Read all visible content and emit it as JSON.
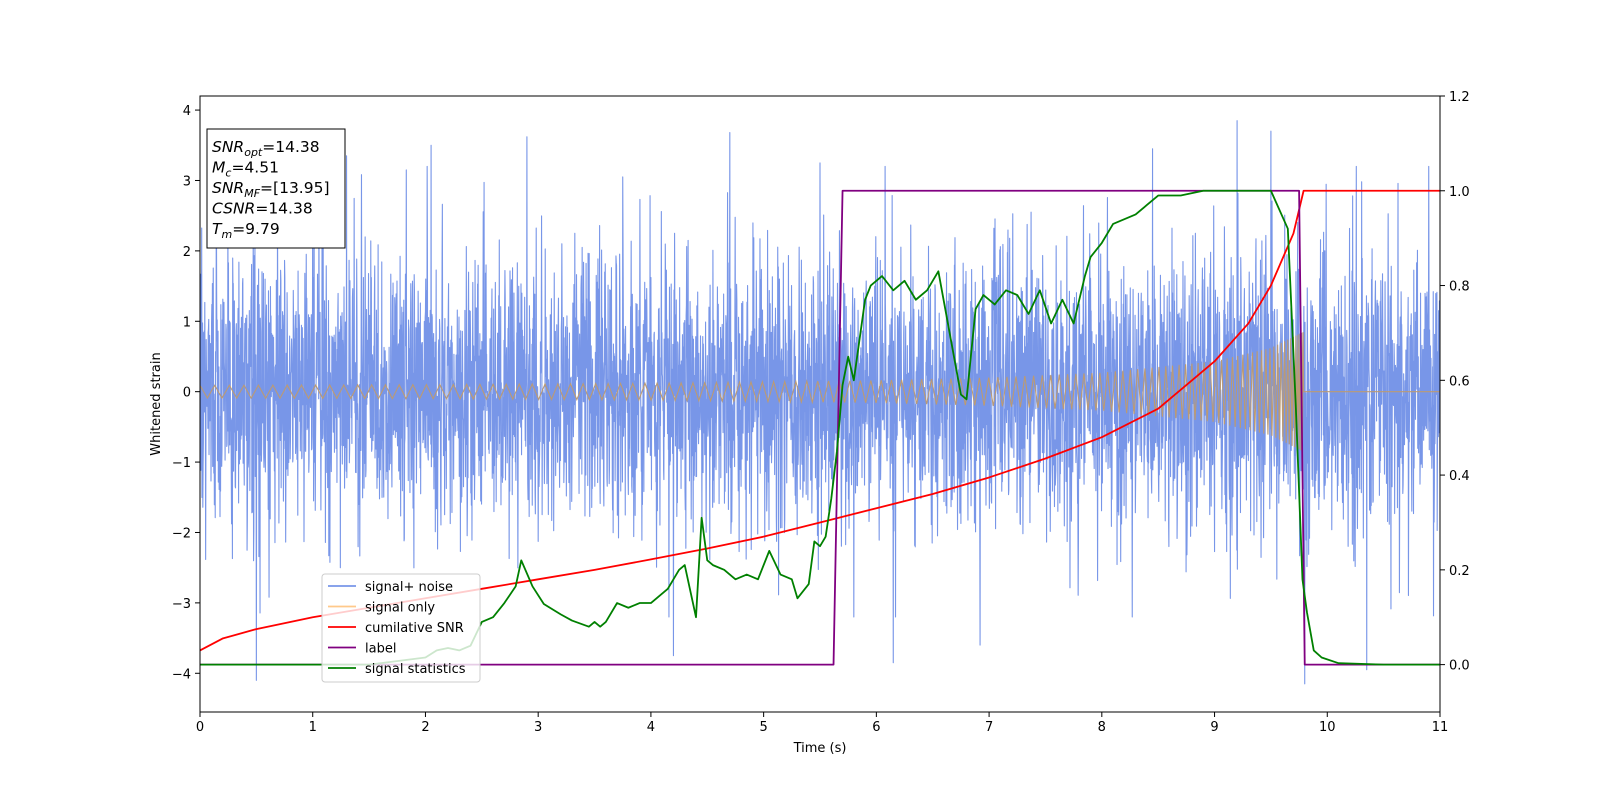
{
  "chart_data": {
    "type": "line",
    "xlabel": "Time (s)",
    "ylabel": "Whitened strain",
    "xlim": [
      0,
      11
    ],
    "ylim": [
      -4.55,
      4.2
    ],
    "ylim_right": [
      -0.1,
      1.2
    ],
    "x_ticks": [
      0,
      1,
      2,
      3,
      4,
      5,
      6,
      7,
      8,
      9,
      10,
      11
    ],
    "y_ticks": [
      4,
      3,
      2,
      1,
      0,
      -1,
      -2,
      -3,
      -4
    ],
    "y_tick_labels": [
      "4",
      "3",
      "2",
      "1",
      "0",
      "−1",
      "−2",
      "−3",
      "−4"
    ],
    "y_right_ticks": [
      1.2,
      1.0,
      0.8,
      0.6,
      0.4,
      0.2,
      0.0
    ],
    "y_right_tick_labels": [
      "1.2",
      "1.0",
      "0.8",
      "0.6",
      "0.4",
      "0.2",
      "0.0"
    ],
    "grid": false,
    "legend_placement": "lower-left",
    "info_box": [
      {
        "main": "SNR",
        "sub": "opt",
        "rest": "=14.38"
      },
      {
        "main": "M",
        "sub": "c",
        "rest": "=4.51"
      },
      {
        "main": "SNR",
        "sub": "MF",
        "rest": "=[13.95]"
      },
      {
        "main": "CSNR",
        "sub": "",
        "rest": "=14.38"
      },
      {
        "main": "T",
        "sub": "m",
        "rest": "=9.79"
      }
    ],
    "merger_time": 9.79,
    "series": [
      {
        "name": "signal+ noise",
        "color": "#7896e8",
        "axis": "left",
        "noise_sigma": 1.0,
        "peaks": [
          [
            0.5,
            -4.1
          ],
          [
            1.3,
            3.35
          ],
          [
            2.05,
            3.5
          ],
          [
            2.9,
            3.62
          ],
          [
            3.75,
            3.05
          ],
          [
            4.2,
            -3.75
          ],
          [
            4.7,
            3.68
          ],
          [
            5.5,
            3.25
          ],
          [
            6.15,
            -3.85
          ],
          [
            6.92,
            -3.6
          ],
          [
            8.45,
            3.45
          ],
          [
            9.2,
            3.85
          ],
          [
            9.5,
            3.7
          ],
          [
            9.8,
            -4.15
          ],
          [
            10.35,
            -3.95
          ]
        ]
      },
      {
        "name": "signal only",
        "color": "#bb9a74",
        "legend_color": "#ffc98a",
        "axis": "left",
        "amplitude": [
          [
            0,
            0.09
          ],
          [
            2,
            0.1
          ],
          [
            4,
            0.12
          ],
          [
            6,
            0.16
          ],
          [
            7,
            0.2
          ],
          [
            8,
            0.27
          ],
          [
            9,
            0.43
          ],
          [
            9.5,
            0.62
          ],
          [
            9.79,
            0.85
          ]
        ]
      },
      {
        "name": "cumilative SNR",
        "color": "#ff0000",
        "axis": "right",
        "x": [
          0,
          0.2,
          0.5,
          1,
          1.5,
          2,
          2.5,
          3,
          3.5,
          4,
          4.5,
          5,
          5.5,
          6,
          6.5,
          7,
          7.5,
          8,
          8.5,
          9,
          9.3,
          9.5,
          9.7,
          9.79,
          11
        ],
        "y": [
          0.03,
          0.055,
          0.075,
          0.1,
          0.12,
          0.14,
          0.16,
          0.18,
          0.2,
          0.222,
          0.245,
          0.27,
          0.3,
          0.33,
          0.36,
          0.395,
          0.435,
          0.48,
          0.54,
          0.64,
          0.72,
          0.8,
          0.91,
          1.0,
          1.0
        ]
      },
      {
        "name": "label",
        "color": "#800080",
        "axis": "right",
        "x": [
          0,
          5.62,
          5.7,
          9.75,
          9.8,
          11
        ],
        "y": [
          0,
          0,
          1,
          1,
          0,
          0
        ]
      },
      {
        "name": "signal statistics",
        "color": "#008000",
        "axis": "right",
        "x": [
          0,
          0.5,
          1,
          1.5,
          2,
          2.1,
          2.2,
          2.3,
          2.4,
          2.5,
          2.6,
          2.7,
          2.8,
          2.85,
          2.95,
          3.05,
          3.2,
          3.3,
          3.45,
          3.5,
          3.55,
          3.6,
          3.7,
          3.8,
          3.9,
          4,
          4.05,
          4.15,
          4.25,
          4.3,
          4.4,
          4.45,
          4.5,
          4.55,
          4.65,
          4.75,
          4.85,
          4.95,
          5.05,
          5.15,
          5.25,
          5.3,
          5.4,
          5.45,
          5.5,
          5.55,
          5.6,
          5.65,
          5.7,
          5.75,
          5.8,
          5.9,
          5.95,
          6.05,
          6.15,
          6.25,
          6.35,
          6.45,
          6.55,
          6.65,
          6.75,
          6.8,
          6.88,
          6.95,
          7.05,
          7.15,
          7.25,
          7.35,
          7.45,
          7.55,
          7.65,
          7.75,
          7.85,
          7.9,
          8.0,
          8.1,
          8.2,
          8.3,
          8.4,
          8.5,
          8.7,
          8.9,
          9.1,
          9.3,
          9.5,
          9.65,
          9.72,
          9.78,
          9.82,
          9.88,
          9.95,
          10.1,
          10.5,
          11
        ],
        "y": [
          0.0,
          0.0,
          0.0,
          0.0,
          0.015,
          0.03,
          0.035,
          0.03,
          0.04,
          0.09,
          0.1,
          0.13,
          0.165,
          0.22,
          0.165,
          0.128,
          0.106,
          0.093,
          0.08,
          0.09,
          0.08,
          0.09,
          0.13,
          0.12,
          0.13,
          0.13,
          0.14,
          0.16,
          0.2,
          0.21,
          0.1,
          0.31,
          0.22,
          0.21,
          0.2,
          0.18,
          0.19,
          0.18,
          0.24,
          0.19,
          0.18,
          0.14,
          0.17,
          0.26,
          0.25,
          0.27,
          0.35,
          0.45,
          0.59,
          0.65,
          0.6,
          0.77,
          0.8,
          0.82,
          0.79,
          0.81,
          0.77,
          0.79,
          0.83,
          0.7,
          0.57,
          0.56,
          0.75,
          0.78,
          0.76,
          0.79,
          0.78,
          0.74,
          0.79,
          0.72,
          0.77,
          0.72,
          0.82,
          0.86,
          0.89,
          0.93,
          0.94,
          0.95,
          0.97,
          0.99,
          0.99,
          1.0,
          1.0,
          1.0,
          1.0,
          0.92,
          0.55,
          0.18,
          0.11,
          0.03,
          0.015,
          0.003,
          0.0,
          0.0
        ]
      }
    ]
  }
}
